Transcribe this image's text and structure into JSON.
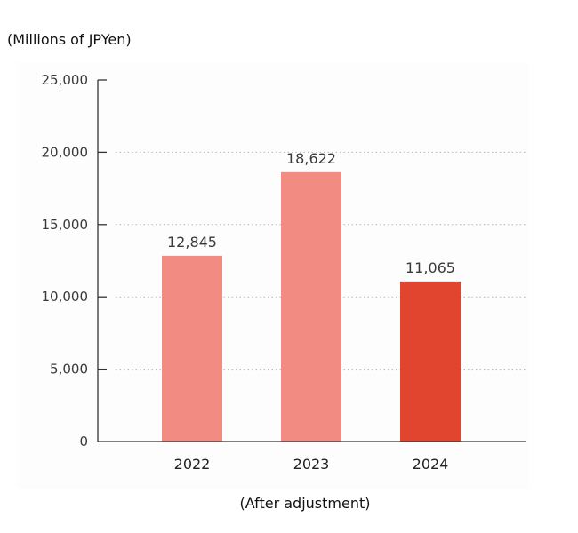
{
  "chart_data": {
    "type": "bar",
    "unit_label": "(Millions of JPYen)",
    "note": "(After adjustment)",
    "categories": [
      "2022",
      "2023",
      "2024"
    ],
    "values": [
      12845,
      18622,
      11065
    ],
    "value_labels": [
      "12,845",
      "18,622",
      "11,065"
    ],
    "bar_colors": [
      "#f28b82",
      "#f28b82",
      "#e2452f"
    ],
    "ylim": [
      0,
      25000
    ],
    "yticks": [
      0,
      5000,
      10000,
      15000,
      20000,
      25000
    ],
    "ytick_labels": [
      "0",
      "5,000",
      "10,000",
      "15,000",
      "20,000",
      "25,000"
    ],
    "grid": "dotted-horizontal",
    "legend": "none"
  }
}
